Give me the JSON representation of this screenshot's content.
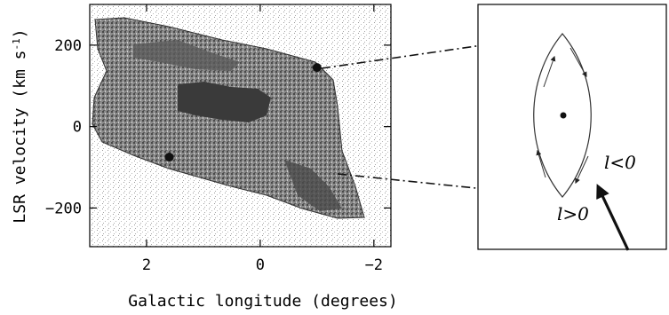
{
  "figure": {
    "xlabel": "Galactic longitude (degrees)",
    "ylabel": "LSR velocity (km s",
    "ylabel_sup": "-1",
    "ylabel_close": ")",
    "x_ticks": [
      {
        "value": 2,
        "label": "2"
      },
      {
        "value": 0,
        "label": "0"
      },
      {
        "value": -2,
        "label": "−2"
      }
    ],
    "y_ticks": [
      {
        "value": 200,
        "label": "200"
      },
      {
        "value": 0,
        "label": "0"
      },
      {
        "value": -200,
        "label": "−200"
      }
    ],
    "xlim": [
      3,
      -2.3
    ],
    "ylim": [
      -295,
      300
    ],
    "markers": [
      {
        "l": -1.0,
        "v": 145
      },
      {
        "l": 1.6,
        "v": -75
      }
    ],
    "inset": {
      "label_l_negative": "l<0",
      "label_l_positive": "l>0"
    },
    "colors": {
      "ink": "#111111",
      "dark_fill": "#3a3a3a",
      "mid_fill": "#8a8a8a",
      "light_fill": "#cfcfcf"
    }
  }
}
